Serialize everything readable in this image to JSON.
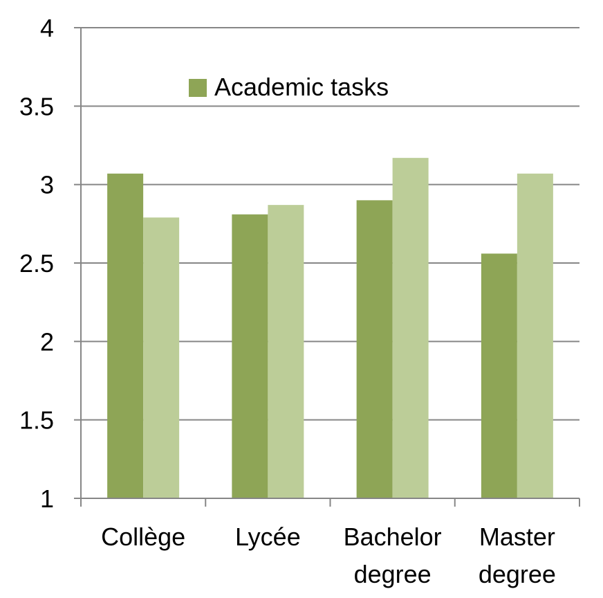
{
  "chart_data": {
    "type": "bar",
    "categories": [
      [
        "Collège"
      ],
      [
        "Lycée"
      ],
      [
        "Bachelor",
        "degree"
      ],
      [
        "Master",
        "degree"
      ]
    ],
    "series": [
      {
        "name": "Academic tasks",
        "color": "#8ea556",
        "values": [
          3.07,
          2.81,
          2.9,
          2.56
        ]
      },
      {
        "color": "#bccd98",
        "values": [
          2.79,
          2.87,
          3.17,
          3.07
        ]
      }
    ],
    "ylim": [
      1,
      4
    ],
    "yticks": [
      "1",
      "1.5",
      "2",
      "2.5",
      "3",
      "3.5",
      "4"
    ],
    "grid": true,
    "legend_position": "top",
    "axis_color": "#868686",
    "grid_color": "#868686"
  }
}
